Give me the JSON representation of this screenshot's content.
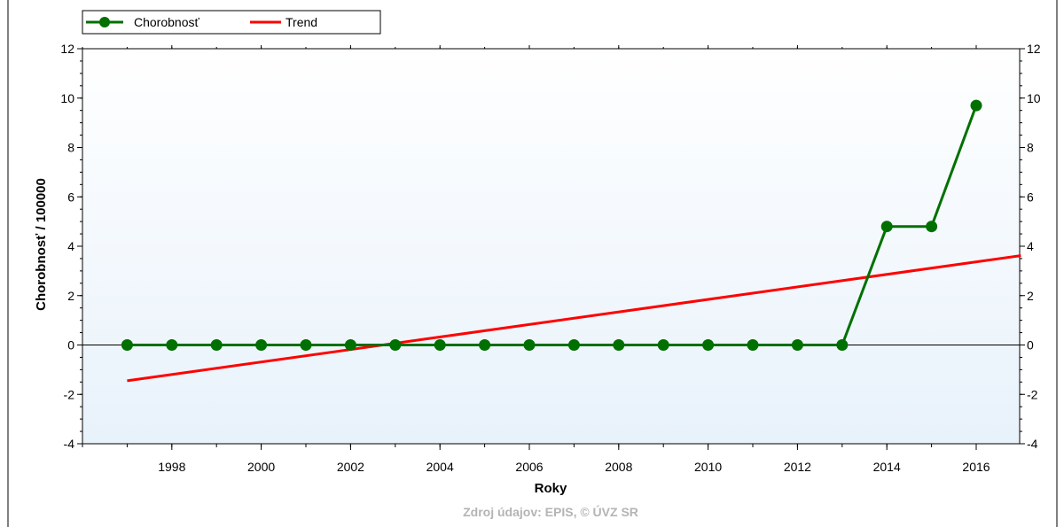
{
  "colors": {
    "plot_bg_top": "#ffffff",
    "plot_bg_bottom": "#e8f2fb",
    "series": "#007000",
    "trend": "#ff0000",
    "source_text": "#b4b4b4"
  },
  "chart_data": {
    "type": "line",
    "x": [
      1997,
      1998,
      1999,
      2000,
      2001,
      2002,
      2003,
      2004,
      2005,
      2006,
      2007,
      2008,
      2009,
      2010,
      2011,
      2012,
      2013,
      2014,
      2015,
      2016
    ],
    "series": [
      {
        "name": "Chorobnosť",
        "marker": "circle",
        "values": [
          0,
          0,
          0,
          0,
          0,
          0,
          0,
          0,
          0,
          0,
          0,
          0,
          0,
          0,
          0,
          0,
          0,
          4.8,
          4.8,
          9.7
        ]
      },
      {
        "name": "Trend",
        "marker": "none",
        "start": [
          1997,
          -1.45
        ],
        "end": [
          2017,
          3.62
        ]
      }
    ],
    "xlabel": "Roky",
    "ylabel": "Chorobnosť / 100000",
    "xlim": [
      1996,
      2017
    ],
    "ylim": [
      -4,
      12
    ],
    "xticks": [
      "1998",
      "2000",
      "2002",
      "2004",
      "2006",
      "2008",
      "2010",
      "2012",
      "2014",
      "2016"
    ],
    "yticks": [
      "-4",
      "-2",
      "0",
      "2",
      "4",
      "6",
      "8",
      "10",
      "12"
    ],
    "legend_position": "top-left",
    "grid": false,
    "source": "Zdroj údajov: EPIS, © ÚVZ SR"
  }
}
